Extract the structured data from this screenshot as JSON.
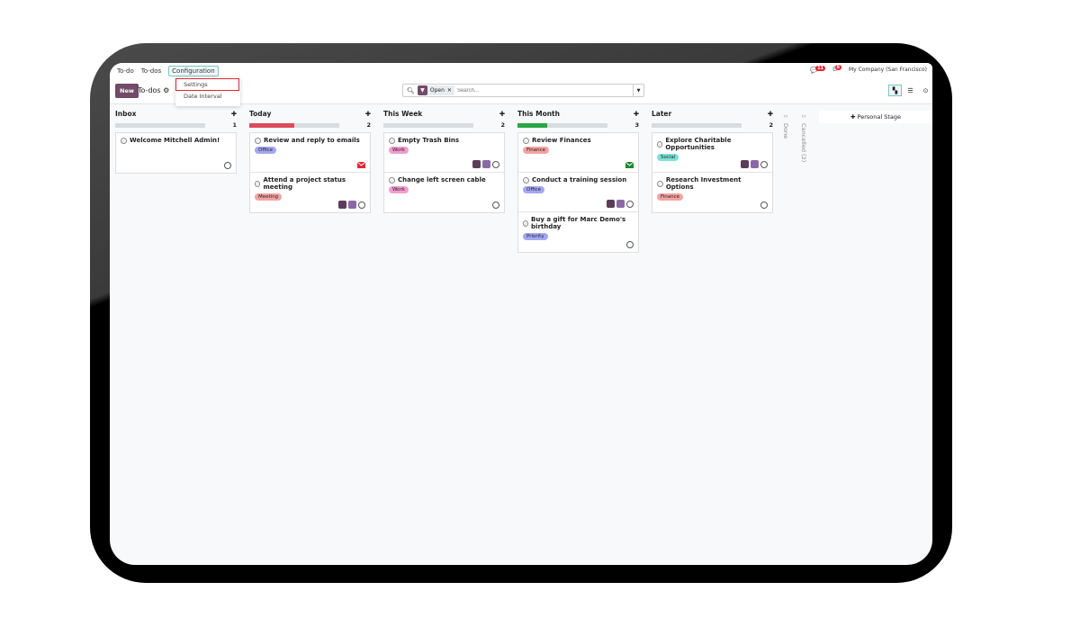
{
  "nav": {
    "app": "To-do",
    "items": [
      "To-dos",
      "Configuration"
    ],
    "company": "My Company (San Francisco)",
    "messages_count": "11",
    "activities_count": "8"
  },
  "config_menu": {
    "items": [
      "Settings",
      "Date Interval"
    ],
    "highlighted": "Settings"
  },
  "control": {
    "new_label": "New",
    "title": "To-dos",
    "facet": "Open",
    "search_placeholder": "Search..."
  },
  "columns": [
    {
      "name": "Inbox",
      "count": "1",
      "progress": 0,
      "progress_color": "#d9dcdf",
      "cards": [
        {
          "title": "Welcome Mitchell Admin!",
          "tag": "",
          "avatars": 0
        }
      ]
    },
    {
      "name": "Today",
      "count": "2",
      "progress": 50,
      "progress_color": "#dc4b5c",
      "cards": [
        {
          "title": "Review and reply to emails",
          "tag": "Office",
          "tag_color": "#a3a8f5",
          "avatars": 0,
          "mail": "#e4262d"
        },
        {
          "title": "Attend a project status meeting",
          "tag": "Meeting",
          "tag_color": "#f5a3a3",
          "avatars": 2
        }
      ]
    },
    {
      "name": "This Week",
      "count": "2",
      "progress": 0,
      "progress_color": "#d9dcdf",
      "cards": [
        {
          "title": "Empty Trash Bins",
          "tag": "Work",
          "tag_color": "#f59ccf",
          "avatars": 2
        },
        {
          "title": "Change left screen cable",
          "tag": "Work",
          "tag_color": "#f59ccf",
          "avatars": 0
        }
      ]
    },
    {
      "name": "This Month",
      "count": "3",
      "progress": 33,
      "progress_color": "#28a745",
      "cards": [
        {
          "title": "Review Finances",
          "tag": "Finance",
          "tag_color": "#f5a3a3",
          "avatars": 0,
          "mail": "#1a8a2e"
        },
        {
          "title": "Conduct a training session",
          "tag": "Office",
          "tag_color": "#a3a8f5",
          "avatars": 2
        },
        {
          "title": "Buy a gift for Marc Demo's birthday",
          "tag": "Priority",
          "tag_color": "#a3a8f5",
          "avatars": 0
        }
      ]
    },
    {
      "name": "Later",
      "count": "2",
      "progress": 0,
      "progress_color": "#d9dcdf",
      "cards": [
        {
          "title": "Explore Charitable Opportunities",
          "tag": "Social",
          "tag_color": "#7fe0d8",
          "avatars": 2
        },
        {
          "title": "Research Investment Options",
          "tag": "Finance",
          "tag_color": "#f5a3a3",
          "avatars": 0
        }
      ]
    }
  ],
  "folded": [
    "Done",
    "Cancelled (2)"
  ],
  "personal_stage": "Personal Stage"
}
